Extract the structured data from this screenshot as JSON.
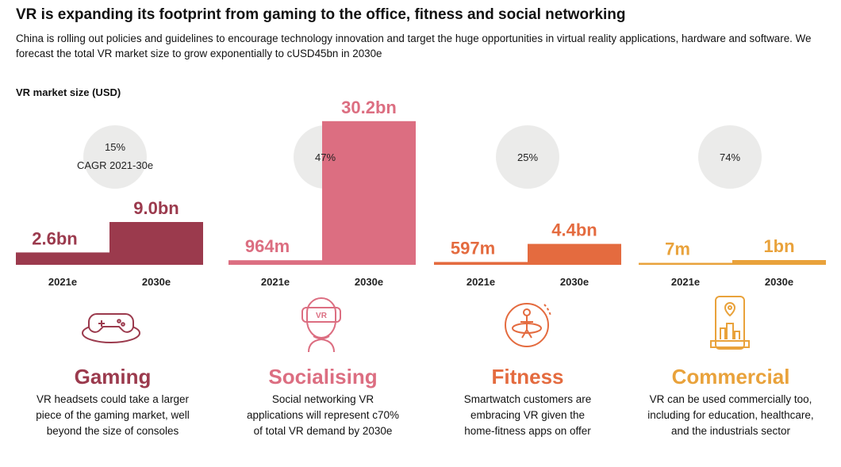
{
  "title": "VR is expanding its footprint from gaming to the office, fitness and social networking",
  "subtitle": "China is rolling out policies and guidelines to encourage technology innovation and target the huge opportunities in virtual reality applications, hardware and software. We forecast the total VR market size to grow exponentially to cUSD45bn in 2030e",
  "market_label": "VR market size (USD)",
  "colors": {
    "gaming": "#9b3a4d",
    "socialising": "#dc6e81",
    "fitness": "#e46b3f",
    "commercial": "#e9a23b",
    "circle": "#e8e8e6"
  },
  "chart_data": [
    {
      "type": "bar",
      "title": "Gaming",
      "categories": [
        "2021e",
        "2030e"
      ],
      "values": [
        2.6,
        9.0
      ],
      "units": "USD bn",
      "data_labels": [
        "2.6bn",
        "9.0bn"
      ],
      "cagr_label": "15%",
      "cagr_sub": "CAGR 2021-30e",
      "color_key": "gaming"
    },
    {
      "type": "bar",
      "title": "Socialising",
      "categories": [
        "2021e",
        "2030e"
      ],
      "values": [
        0.964,
        30.2
      ],
      "units": "USD bn",
      "data_labels": [
        "964m",
        "30.2bn"
      ],
      "cagr_label": "47%",
      "color_key": "socialising"
    },
    {
      "type": "bar",
      "title": "Fitness",
      "categories": [
        "2021e",
        "2030e"
      ],
      "values": [
        0.597,
        4.4
      ],
      "units": "USD bn",
      "data_labels": [
        "597m",
        "4.4bn"
      ],
      "cagr_label": "25%",
      "color_key": "fitness"
    },
    {
      "type": "bar",
      "title": "Commercial",
      "categories": [
        "2021e",
        "2030e"
      ],
      "values": [
        0.007,
        1.0
      ],
      "units": "USD bn",
      "data_labels": [
        "7m",
        "1bn"
      ],
      "cagr_label": "74%",
      "color_key": "commercial"
    }
  ],
  "panels": [
    {
      "name": "Gaming",
      "icon": "gamepad-icon",
      "desc": [
        "VR headsets could take a larger",
        "piece of the gaming market, well",
        "beyond the size of consoles"
      ]
    },
    {
      "name": "Socialising",
      "icon": "vr-headset-icon",
      "desc": [
        "Social networking VR",
        "applications will represent c70%",
        "of total VR demand by 2030e"
      ]
    },
    {
      "name": "Fitness",
      "icon": "fitness-rotation-icon",
      "desc": [
        "Smartwatch customers are",
        "embracing VR given the",
        "home-fitness apps on offer"
      ]
    },
    {
      "name": "Commercial",
      "icon": "commercial-phone-icon",
      "desc": [
        "VR can be used commercially too,",
        "including for education, healthcare,",
        "and the industrials sector"
      ]
    }
  ]
}
